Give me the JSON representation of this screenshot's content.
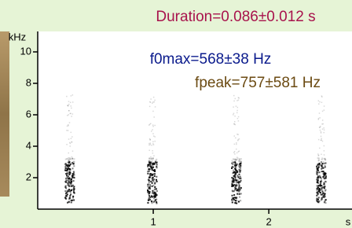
{
  "chart_data": {
    "type": "spectrogram",
    "title": "Duration=0.086±0.012 s",
    "annotations": [
      {
        "text": "f0max=568±38 Hz",
        "color": "#0a1a8c"
      },
      {
        "text": "fpeak=757±581 Hz",
        "color": "#6b4a12"
      }
    ],
    "title_color": "#a8134c",
    "ylabel": "kHz",
    "xlabel": "s",
    "xlim": [
      0,
      2.72
    ],
    "ylim": [
      0,
      11.3
    ],
    "xticks": [
      1,
      2
    ],
    "yticks": [
      2,
      4,
      6,
      8,
      10
    ]
  }
}
